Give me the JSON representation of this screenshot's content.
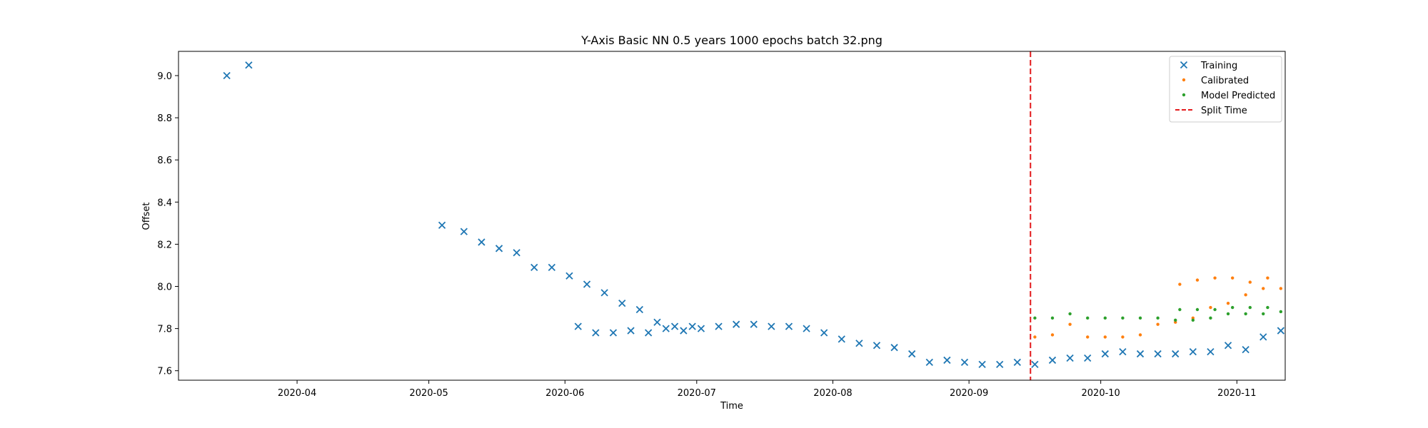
{
  "chart_data": {
    "type": "scatter",
    "title": "Y-Axis Basic NN 0.5 years 1000 epochs batch 32.png",
    "xlabel": "Time",
    "ylabel": "Offset",
    "xlim": [
      "2020-03-05",
      "2020-11-12"
    ],
    "ylim": [
      7.555,
      9.115
    ],
    "x_ticks": [
      "2020-04-01",
      "2020-05-01",
      "2020-06-01",
      "2020-07-01",
      "2020-08-01",
      "2020-09-01",
      "2020-10-01",
      "2020-11-01"
    ],
    "x_tick_labels": [
      "2020-04",
      "2020-05",
      "2020-06",
      "2020-07",
      "2020-08",
      "2020-09",
      "2020-10",
      "2020-11"
    ],
    "y_ticks": [
      7.6,
      7.8,
      8.0,
      8.2,
      8.4,
      8.6,
      8.8,
      9.0
    ],
    "y_tick_labels": [
      "7.6",
      "7.8",
      "8.0",
      "8.2",
      "8.4",
      "8.6",
      "8.8",
      "9.0"
    ],
    "grid": false,
    "legend_position": "top-right",
    "split_time": "2020-09-15",
    "series": [
      {
        "name": "Training",
        "marker": "x",
        "color": "#1f77b4",
        "points": [
          [
            "2020-03-16",
            9.0
          ],
          [
            "2020-03-21",
            9.05
          ],
          [
            "2020-05-04",
            8.29
          ],
          [
            "2020-05-09",
            8.26
          ],
          [
            "2020-05-13",
            8.21
          ],
          [
            "2020-05-17",
            8.18
          ],
          [
            "2020-05-21",
            8.16
          ],
          [
            "2020-05-25",
            8.09
          ],
          [
            "2020-05-29",
            8.09
          ],
          [
            "2020-06-02",
            8.05
          ],
          [
            "2020-06-06",
            8.01
          ],
          [
            "2020-06-10",
            7.97
          ],
          [
            "2020-06-14",
            7.92
          ],
          [
            "2020-06-18",
            7.89
          ],
          [
            "2020-06-22",
            7.83
          ],
          [
            "2020-06-26",
            7.81
          ],
          [
            "2020-06-30",
            7.81
          ],
          [
            "2020-06-04",
            7.81
          ],
          [
            "2020-06-08",
            7.78
          ],
          [
            "2020-06-12",
            7.78
          ],
          [
            "2020-06-16",
            7.79
          ],
          [
            "2020-06-20",
            7.78
          ],
          [
            "2020-06-24",
            7.8
          ],
          [
            "2020-06-28",
            7.79
          ],
          [
            "2020-07-02",
            7.8
          ],
          [
            "2020-07-06",
            7.81
          ],
          [
            "2020-07-10",
            7.82
          ],
          [
            "2020-07-14",
            7.82
          ],
          [
            "2020-07-18",
            7.81
          ],
          [
            "2020-07-22",
            7.81
          ],
          [
            "2020-07-26",
            7.8
          ],
          [
            "2020-07-30",
            7.78
          ],
          [
            "2020-08-03",
            7.75
          ],
          [
            "2020-08-07",
            7.73
          ],
          [
            "2020-08-11",
            7.72
          ],
          [
            "2020-08-15",
            7.71
          ],
          [
            "2020-08-19",
            7.68
          ],
          [
            "2020-08-23",
            7.64
          ],
          [
            "2020-08-27",
            7.65
          ],
          [
            "2020-08-31",
            7.64
          ],
          [
            "2020-09-04",
            7.63
          ],
          [
            "2020-09-08",
            7.63
          ],
          [
            "2020-09-12",
            7.64
          ],
          [
            "2020-09-16",
            7.63
          ],
          [
            "2020-09-20",
            7.65
          ],
          [
            "2020-09-24",
            7.66
          ],
          [
            "2020-09-28",
            7.66
          ],
          [
            "2020-10-02",
            7.68
          ],
          [
            "2020-10-06",
            7.69
          ],
          [
            "2020-10-10",
            7.68
          ],
          [
            "2020-10-14",
            7.68
          ],
          [
            "2020-10-18",
            7.68
          ],
          [
            "2020-10-22",
            7.69
          ],
          [
            "2020-10-26",
            7.69
          ],
          [
            "2020-10-30",
            7.72
          ],
          [
            "2020-11-03",
            7.7
          ],
          [
            "2020-11-07",
            7.76
          ],
          [
            "2020-11-11",
            7.79
          ]
        ]
      },
      {
        "name": "Calibrated",
        "marker": "dot",
        "color": "#ff7f0e",
        "points": [
          [
            "2020-09-16",
            7.76
          ],
          [
            "2020-09-20",
            7.77
          ],
          [
            "2020-09-24",
            7.82
          ],
          [
            "2020-09-28",
            7.76
          ],
          [
            "2020-10-02",
            7.76
          ],
          [
            "2020-10-06",
            7.76
          ],
          [
            "2020-10-10",
            7.77
          ],
          [
            "2020-10-14",
            7.82
          ],
          [
            "2020-10-18",
            7.83
          ],
          [
            "2020-10-22",
            7.85
          ],
          [
            "2020-10-26",
            7.9
          ],
          [
            "2020-10-30",
            7.92
          ],
          [
            "2020-11-03",
            7.96
          ],
          [
            "2020-11-07",
            7.99
          ],
          [
            "2020-11-11",
            7.99
          ],
          [
            "2020-10-19",
            8.01
          ],
          [
            "2020-10-23",
            8.03
          ],
          [
            "2020-10-27",
            8.04
          ],
          [
            "2020-10-31",
            8.04
          ],
          [
            "2020-11-04",
            8.02
          ],
          [
            "2020-11-08",
            8.04
          ]
        ]
      },
      {
        "name": "Model Predicted",
        "marker": "dot",
        "color": "#2ca02c",
        "points": [
          [
            "2020-09-16",
            7.85
          ],
          [
            "2020-09-20",
            7.85
          ],
          [
            "2020-09-24",
            7.87
          ],
          [
            "2020-09-28",
            7.85
          ],
          [
            "2020-10-02",
            7.85
          ],
          [
            "2020-10-06",
            7.85
          ],
          [
            "2020-10-10",
            7.85
          ],
          [
            "2020-10-14",
            7.85
          ],
          [
            "2020-10-18",
            7.84
          ],
          [
            "2020-10-22",
            7.84
          ],
          [
            "2020-10-26",
            7.85
          ],
          [
            "2020-10-30",
            7.87
          ],
          [
            "2020-11-03",
            7.87
          ],
          [
            "2020-11-07",
            7.87
          ],
          [
            "2020-11-11",
            7.88
          ],
          [
            "2020-10-19",
            7.89
          ],
          [
            "2020-10-23",
            7.89
          ],
          [
            "2020-10-27",
            7.89
          ],
          [
            "2020-10-31",
            7.9
          ],
          [
            "2020-11-04",
            7.9
          ],
          [
            "2020-11-08",
            7.9
          ]
        ]
      },
      {
        "name": "Split Time",
        "marker": "dashed-vline",
        "color": "#e31a1c"
      }
    ]
  }
}
